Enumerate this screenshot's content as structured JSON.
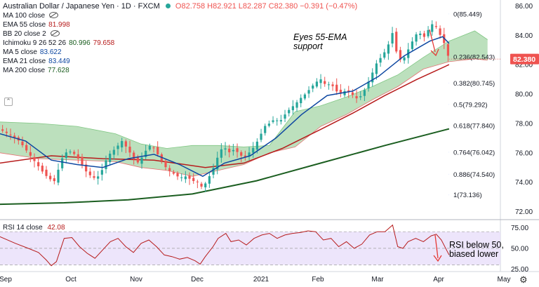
{
  "header": {
    "title": "Australian Dollar / Japanese Yen · 1D · FXCM",
    "ohlc": "O82.758 H82.921 L82.287 C82.380 −0.391 (−0.47%)"
  },
  "legend": [
    {
      "label": "MA 100 close",
      "values": [],
      "hidden": true
    },
    {
      "label": "EMA 55 close",
      "values": [
        "81.998"
      ],
      "colors": [
        "#b71c1c"
      ]
    },
    {
      "label": "BB 20 close 2",
      "values": [],
      "hidden": true
    },
    {
      "label": "Ichimoku 9 26 52 26",
      "values": [
        "80.996",
        "79.658"
      ],
      "colors": [
        "#1b5e20",
        "#b71c1c"
      ]
    },
    {
      "label": "MA 5 close",
      "values": [
        "83.622"
      ],
      "colors": [
        "#0d47a1"
      ]
    },
    {
      "label": "EMA 21 close",
      "values": [
        "83.449"
      ],
      "colors": [
        "#0d47a1"
      ]
    },
    {
      "label": "MA 200 close",
      "values": [
        "77.628"
      ],
      "colors": [
        "#1b5e20"
      ]
    }
  ],
  "annotations": {
    "support": "Eyes 55-EMA\nsupport",
    "rsi": "RSI below 50,\nbiased lower"
  },
  "rsi_legend": {
    "label": "RSI 14 close",
    "value": "42.08"
  },
  "price_badge": "82.380",
  "colors": {
    "up": "#26a69a",
    "down": "#ef5350",
    "ema55": "#b71c1c",
    "ema21": "#0d47a1",
    "ma200": "#1b5e20",
    "cloud_green": "#a5d6a7",
    "cloud_red": "#ef9a9a",
    "rsi_line": "#b71c1c",
    "rsi_band": "#e9defa",
    "fib": "#2962ff",
    "badge": "#ef5350"
  },
  "chart_data": {
    "type": "candlestick",
    "title": "Australian Dollar / Japanese Yen · 1D · FXCM",
    "x_labels": [
      "Sep",
      "Oct",
      "Nov",
      "Dec",
      "2021",
      "Feb",
      "Mar",
      "Apr",
      "May"
    ],
    "y_ticks": [
      72.0,
      74.0,
      76.0,
      78.0,
      80.0,
      82.0,
      84.0,
      86.0
    ],
    "ylim": [
      71.5,
      86.4
    ],
    "last_price": 82.38,
    "close_path": [
      [
        0,
        77.6
      ],
      [
        8,
        77.2
      ],
      [
        15,
        76.8
      ],
      [
        22,
        76.0
      ],
      [
        28,
        75.3
      ],
      [
        35,
        74.5
      ],
      [
        42,
        74.0
      ],
      [
        50,
        76.0
      ],
      [
        56,
        76.1
      ],
      [
        62,
        75.5
      ],
      [
        68,
        74.6
      ],
      [
        75,
        74.2
      ],
      [
        80,
        74.9
      ],
      [
        84,
        75.8
      ],
      [
        90,
        76.3
      ],
      [
        95,
        76.8
      ],
      [
        100,
        76.2
      ],
      [
        104,
        75.6
      ],
      [
        108,
        75.3
      ],
      [
        112,
        75.9
      ],
      [
        116,
        76.5
      ],
      [
        120,
        76.3
      ],
      [
        125,
        75.6
      ],
      [
        130,
        74.9
      ],
      [
        135,
        74.6
      ],
      [
        140,
        74.3
      ],
      [
        145,
        74.4
      ],
      [
        150,
        74.1
      ],
      [
        154,
        74.0
      ],
      [
        158,
        73.6
      ],
      [
        162,
        74.2
      ],
      [
        166,
        74.9
      ],
      [
        170,
        75.8
      ],
      [
        174,
        76.5
      ],
      [
        178,
        76.0
      ],
      [
        182,
        76.2
      ],
      [
        186,
        76.0
      ],
      [
        190,
        75.6
      ],
      [
        194,
        76.0
      ],
      [
        198,
        76.4
      ],
      [
        202,
        77.0
      ],
      [
        206,
        77.8
      ],
      [
        210,
        78.0
      ],
      [
        214,
        78.3
      ],
      [
        218,
        78.1
      ],
      [
        222,
        78.6
      ],
      [
        226,
        79.0
      ],
      [
        230,
        79.3
      ],
      [
        234,
        79.7
      ],
      [
        238,
        80.0
      ],
      [
        242,
        80.4
      ],
      [
        246,
        80.8
      ],
      [
        250,
        81.0
      ],
      [
        254,
        80.6
      ],
      [
        258,
        80.7
      ],
      [
        262,
        80.2
      ],
      [
        266,
        80.0
      ],
      [
        270,
        80.3
      ],
      [
        274,
        80.0
      ],
      [
        278,
        79.7
      ],
      [
        282,
        79.9
      ],
      [
        286,
        80.6
      ],
      [
        290,
        81.4
      ],
      [
        294,
        82.2
      ],
      [
        298,
        82.6
      ],
      [
        302,
        83.2
      ],
      [
        306,
        84.2
      ],
      [
        310,
        82.4
      ],
      [
        314,
        82.3
      ],
      [
        318,
        83.0
      ],
      [
        322,
        83.7
      ],
      [
        326,
        84.3
      ],
      [
        330,
        83.8
      ],
      [
        334,
        84.4
      ],
      [
        338,
        84.9
      ],
      [
        342,
        84.2
      ],
      [
        346,
        83.5
      ],
      [
        350,
        82.38
      ]
    ],
    "ema55": [
      [
        0,
        75.3
      ],
      [
        40,
        75.8
      ],
      [
        80,
        75.6
      ],
      [
        120,
        75.5
      ],
      [
        160,
        75.0
      ],
      [
        190,
        75.3
      ],
      [
        220,
        76.3
      ],
      [
        250,
        77.6
      ],
      [
        275,
        78.7
      ],
      [
        300,
        79.9
      ],
      [
        325,
        81.0
      ],
      [
        350,
        82.0
      ]
    ],
    "ema21": [
      [
        0,
        77.3
      ],
      [
        20,
        76.8
      ],
      [
        40,
        75.5
      ],
      [
        60,
        75.2
      ],
      [
        80,
        75.0
      ],
      [
        100,
        75.6
      ],
      [
        120,
        75.9
      ],
      [
        140,
        75.2
      ],
      [
        158,
        74.4
      ],
      [
        175,
        75.3
      ],
      [
        195,
        75.8
      ],
      [
        215,
        77.0
      ],
      [
        235,
        78.6
      ],
      [
        255,
        79.9
      ],
      [
        275,
        80.2
      ],
      [
        295,
        81.2
      ],
      [
        315,
        82.6
      ],
      [
        335,
        83.6
      ],
      [
        345,
        83.9
      ],
      [
        350,
        83.45
      ]
    ],
    "ma200": [
      [
        0,
        72.5
      ],
      [
        50,
        72.6
      ],
      [
        100,
        72.8
      ],
      [
        150,
        73.2
      ],
      [
        200,
        74.1
      ],
      [
        250,
        75.3
      ],
      [
        300,
        76.5
      ],
      [
        350,
        77.63
      ]
    ],
    "cloud_upper": [
      [
        0,
        78.1
      ],
      [
        30,
        78.0
      ],
      [
        60,
        77.8
      ],
      [
        90,
        77.3
      ],
      [
        110,
        76.6
      ],
      [
        130,
        76.3
      ],
      [
        150,
        76.5
      ],
      [
        170,
        76.5
      ],
      [
        190,
        76.4
      ],
      [
        210,
        76.5
      ],
      [
        230,
        78.8
      ],
      [
        250,
        79.2
      ],
      [
        270,
        79.8
      ],
      [
        290,
        80.5
      ],
      [
        310,
        81.3
      ],
      [
        330,
        82.5
      ],
      [
        350,
        83.6
      ],
      [
        370,
        84.3
      ],
      [
        380,
        83.7
      ]
    ],
    "cloud_lower": [
      [
        0,
        76.0
      ],
      [
        30,
        75.6
      ],
      [
        60,
        75.5
      ],
      [
        90,
        75.4
      ],
      [
        110,
        75.0
      ],
      [
        130,
        74.8
      ],
      [
        150,
        74.4
      ],
      [
        170,
        74.8
      ],
      [
        190,
        75.2
      ],
      [
        210,
        76.0
      ],
      [
        230,
        76.4
      ],
      [
        250,
        77.8
      ],
      [
        270,
        78.6
      ],
      [
        290,
        79.6
      ],
      [
        310,
        80.5
      ],
      [
        330,
        81.7
      ],
      [
        350,
        82.2
      ],
      [
        370,
        82.4
      ],
      [
        380,
        82.3
      ]
    ],
    "fib_levels": [
      {
        "ratio": "0",
        "value": 85.449,
        "label": "0(85.449)"
      },
      {
        "ratio": "0.236",
        "value": 82.543,
        "label": "0.236(82.543)"
      },
      {
        "ratio": "0.382",
        "value": 80.745,
        "label": "0.382(80.745)"
      },
      {
        "ratio": "0.5",
        "value": 79.292,
        "label": "0.5(79.292)"
      },
      {
        "ratio": "0.618",
        "value": 77.84,
        "label": "0.618(77.840)"
      },
      {
        "ratio": "0.764",
        "value": 76.042,
        "label": "0.764(76.042)"
      },
      {
        "ratio": "0.886",
        "value": 74.54,
        "label": "0.886(74.540)"
      },
      {
        "ratio": "1",
        "value": 73.136,
        "label": "1(73.136)"
      }
    ],
    "rsi": {
      "y_ticks": [
        25.0,
        50.0,
        75.0
      ],
      "ylim": [
        22,
        82
      ],
      "band": [
        30,
        70
      ],
      "last": 42.08,
      "path": [
        [
          0,
          64
        ],
        [
          12,
          56
        ],
        [
          22,
          50
        ],
        [
          30,
          45
        ],
        [
          36,
          36
        ],
        [
          40,
          29
        ],
        [
          44,
          34
        ],
        [
          50,
          62
        ],
        [
          56,
          63
        ],
        [
          62,
          52
        ],
        [
          68,
          44
        ],
        [
          74,
          38
        ],
        [
          80,
          48
        ],
        [
          86,
          58
        ],
        [
          92,
          62
        ],
        [
          98,
          52
        ],
        [
          104,
          45
        ],
        [
          110,
          56
        ],
        [
          116,
          60
        ],
        [
          122,
          52
        ],
        [
          128,
          42
        ],
        [
          134,
          40
        ],
        [
          140,
          37
        ],
        [
          146,
          39
        ],
        [
          152,
          35
        ],
        [
          156,
          31
        ],
        [
          160,
          40
        ],
        [
          166,
          52
        ],
        [
          170,
          62
        ],
        [
          176,
          68
        ],
        [
          180,
          58
        ],
        [
          186,
          60
        ],
        [
          192,
          54
        ],
        [
          198,
          62
        ],
        [
          204,
          66
        ],
        [
          210,
          68
        ],
        [
          216,
          62
        ],
        [
          222,
          66
        ],
        [
          228,
          68
        ],
        [
          234,
          69
        ],
        [
          240,
          71
        ],
        [
          246,
          70
        ],
        [
          252,
          60
        ],
        [
          258,
          62
        ],
        [
          264,
          52
        ],
        [
          270,
          58
        ],
        [
          276,
          50
        ],
        [
          282,
          55
        ],
        [
          288,
          66
        ],
        [
          294,
          70
        ],
        [
          300,
          70
        ],
        [
          306,
          78
        ],
        [
          310,
          52
        ],
        [
          314,
          50
        ],
        [
          318,
          58
        ],
        [
          324,
          62
        ],
        [
          330,
          58
        ],
        [
          336,
          65
        ],
        [
          340,
          67
        ],
        [
          344,
          60
        ],
        [
          348,
          48
        ],
        [
          350,
          42
        ]
      ]
    }
  }
}
